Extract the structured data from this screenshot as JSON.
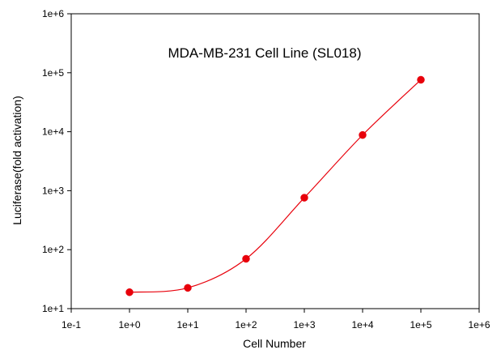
{
  "chart_data": {
    "type": "scatter",
    "title": "MDA-MB-231 Cell Line (SL018)",
    "xlabel": "Cell Number",
    "ylabel": "Luciferase(fold activation)",
    "xscale": "log",
    "yscale": "log",
    "xlim": [
      0.1,
      1000000
    ],
    "ylim": [
      10,
      1000000
    ],
    "x_ticks": [
      0.1,
      1,
      10,
      100,
      1000,
      10000,
      100000,
      1000000
    ],
    "x_tick_labels": [
      "1e-1",
      "1e+0",
      "1e+1",
      "1e+2",
      "1e+3",
      "1e+4",
      "1e+5",
      "1e+6"
    ],
    "y_ticks": [
      10,
      100,
      1000,
      10000,
      100000,
      1000000
    ],
    "y_tick_labels": [
      "1e+1",
      "1e+2",
      "1e+3",
      "1e+4",
      "1e+5",
      "1e+6"
    ],
    "grid": false,
    "legend": "none",
    "series": [
      {
        "x": [
          1,
          10,
          100,
          1000,
          10000,
          100000
        ],
        "y": [
          19,
          22.5,
          70,
          760,
          8800,
          76000
        ],
        "color": "#e8000b",
        "marker": "circle",
        "fit_curve": true
      }
    ]
  }
}
